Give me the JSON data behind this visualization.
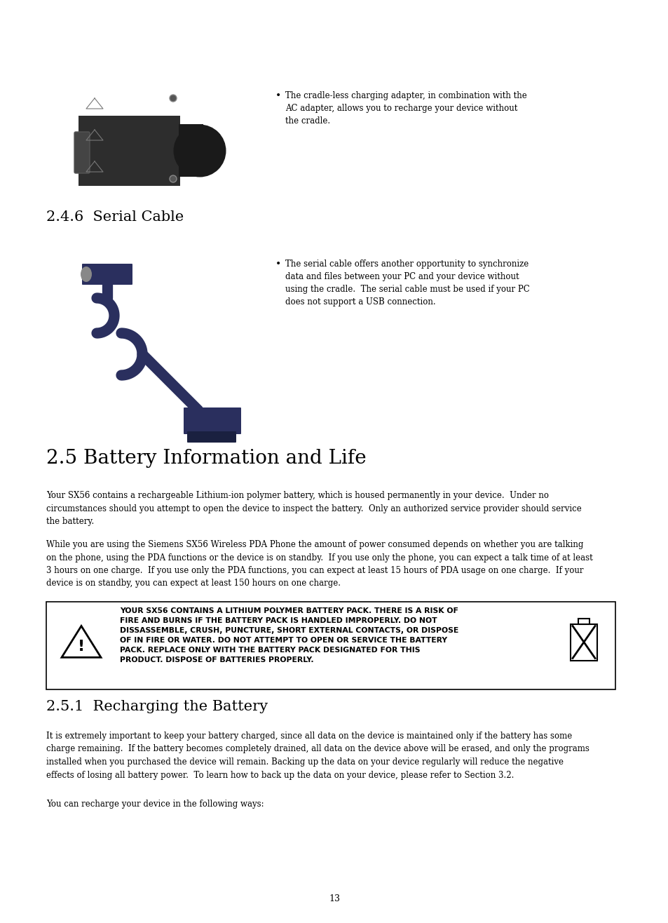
{
  "bg_color": "#ffffff",
  "section_246_title": "2.4.6  Serial Cable",
  "section_25_title": "2.5 Battery Information and Life",
  "section_251_title": "2.5.1  Recharging the Battery",
  "bullet1_text": "The cradle-less charging adapter, in combination with the\nAC adapter, allows you to recharge your device without\nthe cradle.",
  "bullet2_text": "The serial cable offers another opportunity to synchronize\ndata and files between your PC and your device without\nusing the cradle.  The serial cable must be used if your PC\ndoes not support a USB connection.",
  "para1_text": "Your SX56 contains a rechargeable Lithium-ion polymer battery, which is housed permanently in your device.  Under no\ncircumstances should you attempt to open the device to inspect the battery.  Only an authorized service provider should service\nthe battery.",
  "para2_text": "While you are using the Siemens SX56 Wireless PDA Phone the amount of power consumed depends on whether you are talking\non the phone, using the PDA functions or the device is on standby.  If you use only the phone, you can expect a talk time of at least\n3 hours on one charge.  If you use only the PDA functions, you can expect at least 15 hours of PDA usage on one charge.  If your\ndevice is on standby, you can expect at least 150 hours on one charge.",
  "warning_text": "YOUR SX56 CONTAINS A LITHIUM POLYMER BATTERY PACK. THERE IS A RISK OF\nFIRE AND BURNS IF THE BATTERY PACK IS HANDLED IMPROPERLY. DO NOT\nDISSASSEMBLE, CRUSH, PUNCTURE, SHORT EXTERNAL CONTACTS, OR DISPOSE\nOF IN FIRE OR WATER. DO NOT ATTEMPT TO OPEN OR SERVICE THE BATTERY\nPACK. REPLACE ONLY WITH THE BATTERY PACK DESIGNATED FOR THIS\nPRODUCT. DISPOSE OF BATTERIES PROPERLY.",
  "recharge_para1": "It is extremely important to keep your battery charged, since all data on the device is maintained only if the battery has some\ncharge remaining.  If the battery becomes completely drained, all data on the device above will be erased, and only the programs\ninstalled when you purchased the device will remain. Backing up the data on your device regularly will reduce the negative\neffects of losing all battery power.  To learn how to back up the data on your device, please refer to Section 3.2.",
  "recharge_para2": "You can recharge your device in the following ways:",
  "page_number": "13"
}
